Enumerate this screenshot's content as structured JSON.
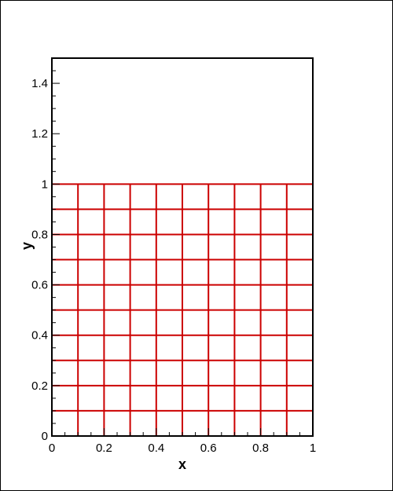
{
  "chart_data": {
    "type": "mesh",
    "xlabel": "x",
    "ylabel": "y",
    "xlim": [
      0,
      1
    ],
    "ylim": [
      0,
      1.5
    ],
    "x_major_ticks": [
      0,
      0.2,
      0.4,
      0.6,
      0.8,
      1
    ],
    "x_tick_labels": [
      "0",
      "0.2",
      "0.4",
      "0.6",
      "0.8",
      "1"
    ],
    "x_minor_ticks": [
      0.05,
      0.1,
      0.15,
      0.25,
      0.3,
      0.35,
      0.45,
      0.5,
      0.55,
      0.65,
      0.7,
      0.75,
      0.85,
      0.9,
      0.95
    ],
    "y_major_ticks": [
      0,
      0.2,
      0.4,
      0.6,
      0.8,
      1,
      1.2,
      1.4
    ],
    "y_tick_labels": [
      "0",
      "0.2",
      "0.4",
      "0.6",
      "0.8",
      "1",
      "1.2",
      "1.4"
    ],
    "y_minor_ticks": [
      0.05,
      0.1,
      0.15,
      0.25,
      0.3,
      0.35,
      0.45,
      0.5,
      0.55,
      0.65,
      0.7,
      0.75,
      0.85,
      0.9,
      0.95,
      1.05,
      1.1,
      1.15,
      1.25,
      1.3,
      1.35,
      1.45
    ],
    "grid_color": "#cc0000",
    "mesh_x_lines": [
      0.1,
      0.2,
      0.3,
      0.4,
      0.5,
      0.6,
      0.7,
      0.8,
      0.9
    ],
    "mesh_y_lines": [
      0.1,
      0.2,
      0.3,
      0.4,
      0.5,
      0.6,
      0.7,
      0.8,
      0.9,
      1.0
    ],
    "mesh_x_range": [
      0,
      1
    ],
    "mesh_y_range": [
      0,
      1
    ]
  }
}
